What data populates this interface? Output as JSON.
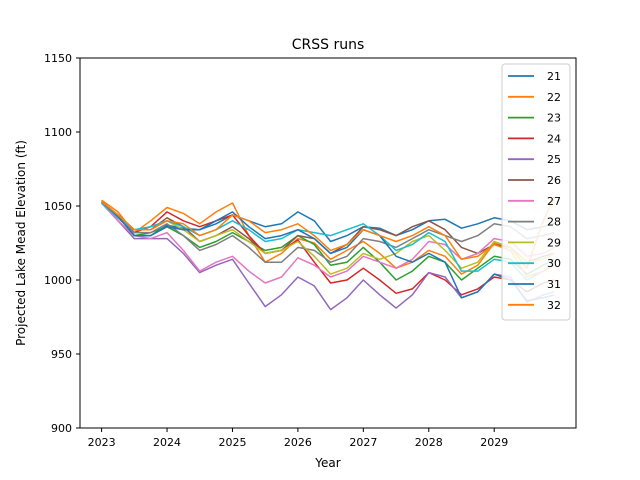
{
  "chart_data": {
    "type": "line",
    "title": "CRSS runs",
    "xlabel": "Year",
    "ylabel": "Projected Lake Mead Elevation (ft)",
    "xlim": [
      2022.67,
      2030.25
    ],
    "ylim": [
      900,
      1150
    ],
    "xticks": [
      2023,
      2024,
      2025,
      2026,
      2027,
      2028,
      2029
    ],
    "yticks": [
      900,
      950,
      1000,
      1050,
      1100,
      1150
    ],
    "grid": false,
    "legend_position": "top-right",
    "colors": [
      "#1f77b4",
      "#ff7f0e",
      "#2ca02c",
      "#d62728",
      "#9467bd",
      "#8c564b",
      "#e377c2",
      "#7f7f7f",
      "#bcbd22",
      "#17becf",
      "#1f77b4",
      "#ff7f0e"
    ],
    "x": [
      2023.0,
      2023.25,
      2023.5,
      2023.75,
      2024.0,
      2024.25,
      2024.5,
      2024.75,
      2025.0,
      2025.25,
      2025.5,
      2025.75,
      2026.0,
      2026.25,
      2026.5,
      2026.75,
      2027.0,
      2027.25,
      2027.5,
      2027.75,
      2028.0,
      2028.25,
      2028.5,
      2028.75,
      2029.0,
      2029.25,
      2029.5,
      2029.75,
      2029.92
    ],
    "series": [
      {
        "name": "21",
        "values": [
          1053,
          1044,
          1030,
          1030,
          1037,
          1035,
          1034,
          1038,
          1044,
          1040,
          1036,
          1038,
          1046,
          1040,
          1026,
          1030,
          1036,
          1035,
          1030,
          1034,
          1040,
          1041,
          1035,
          1038,
          1042,
          1040,
          1034,
          1036,
          1038
        ]
      },
      {
        "name": "22",
        "values": [
          1054,
          1046,
          1032,
          1040,
          1049,
          1045,
          1038,
          1046,
          1052,
          1030,
          1012,
          1018,
          1028,
          1025,
          1014,
          1020,
          1026,
          1018,
          1008,
          1012,
          1020,
          1016,
          1004,
          1010,
          1025,
          1022,
          1008,
          1040,
          1056
        ]
      },
      {
        "name": "23",
        "values": [
          1052,
          1040,
          1030,
          1032,
          1036,
          1030,
          1022,
          1026,
          1032,
          1026,
          1020,
          1022,
          1030,
          1024,
          1010,
          1012,
          1022,
          1012,
          1000,
          1006,
          1016,
          1012,
          1000,
          1008,
          1016,
          1014,
          1004,
          1010,
          1014
        ]
      },
      {
        "name": "24",
        "values": [
          1053,
          1042,
          1032,
          1036,
          1046,
          1040,
          1036,
          1040,
          1044,
          1030,
          1018,
          1020,
          1027,
          1012,
          998,
          1000,
          1008,
          1000,
          991,
          994,
          1005,
          1000,
          990,
          994,
          1002,
          1000,
          992,
          998,
          1000
        ]
      },
      {
        "name": "25",
        "values": [
          1052,
          1040,
          1028,
          1028,
          1028,
          1018,
          1005,
          1010,
          1014,
          998,
          982,
          990,
          1002,
          996,
          980,
          988,
          1000,
          990,
          981,
          990,
          1005,
          1002,
          988,
          992,
          1004,
          1002,
          985,
          990,
          992
        ]
      },
      {
        "name": "26",
        "values": [
          1053,
          1044,
          1034,
          1034,
          1042,
          1036,
          1026,
          1030,
          1036,
          1028,
          1018,
          1020,
          1030,
          1028,
          1018,
          1024,
          1036,
          1034,
          1030,
          1036,
          1040,
          1034,
          1022,
          1018,
          1024,
          1022,
          1012,
          1016,
          1018
        ]
      },
      {
        "name": "27",
        "values": [
          1052,
          1040,
          1030,
          1028,
          1032,
          1020,
          1006,
          1012,
          1016,
          1006,
          998,
          1002,
          1015,
          1010,
          1002,
          1006,
          1016,
          1012,
          1008,
          1014,
          1026,
          1024,
          1014,
          1018,
          1028,
          1026,
          1016,
          1018,
          1022
        ]
      },
      {
        "name": "28",
        "values": [
          1053,
          1042,
          1032,
          1032,
          1038,
          1030,
          1020,
          1024,
          1030,
          1022,
          1012,
          1012,
          1022,
          1020,
          1012,
          1016,
          1028,
          1026,
          1022,
          1028,
          1034,
          1030,
          1026,
          1030,
          1038,
          1036,
          1028,
          1030,
          1032
        ]
      },
      {
        "name": "29",
        "values": [
          1053,
          1044,
          1034,
          1036,
          1040,
          1034,
          1026,
          1030,
          1034,
          1026,
          1018,
          1020,
          1026,
          1016,
          1004,
          1008,
          1018,
          1014,
          1018,
          1026,
          1030,
          1020,
          1008,
          1012,
          1026,
          1022,
          1012,
          1014,
          1018
        ]
      },
      {
        "name": "30",
        "values": [
          1052,
          1042,
          1034,
          1036,
          1040,
          1036,
          1030,
          1034,
          1040,
          1034,
          1026,
          1028,
          1034,
          1032,
          1030,
          1034,
          1038,
          1030,
          1020,
          1024,
          1032,
          1026,
          1006,
          1006,
          1014,
          1012,
          1000,
          1006,
          1012
        ]
      },
      {
        "name": "31",
        "values": [
          1053,
          1043,
          1030,
          1030,
          1036,
          1034,
          1034,
          1040,
          1046,
          1036,
          1028,
          1030,
          1034,
          1028,
          1018,
          1022,
          1034,
          1030,
          1016,
          1012,
          1018,
          1012,
          988,
          992,
          1004,
          1000,
          986,
          988,
          990
        ]
      },
      {
        "name": "32",
        "values": [
          1053,
          1044,
          1034,
          1034,
          1040,
          1038,
          1030,
          1034,
          1044,
          1040,
          1032,
          1034,
          1038,
          1030,
          1020,
          1024,
          1034,
          1030,
          1026,
          1030,
          1036,
          1030,
          1014,
          1016,
          1024,
          1020,
          1002,
          1006,
          1010
        ]
      }
    ]
  }
}
